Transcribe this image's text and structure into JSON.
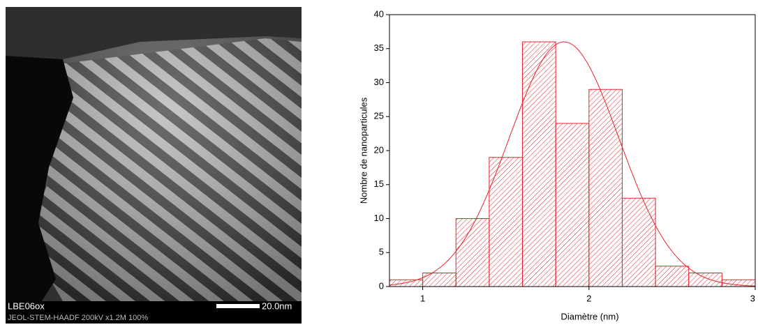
{
  "micrograph": {
    "label": "LBE06ox",
    "info": "JEOL-STEM-HAADF 200kV x1.2M 100%",
    "scale": "20.0nm"
  },
  "chart_data": {
    "type": "histogram",
    "x_label": "Diamètre (nm)",
    "y_label": "Nombre de nanoparticules",
    "bins": [
      0.8,
      1.0,
      1.2,
      1.4,
      1.6,
      1.8,
      2.0,
      2.2,
      2.4,
      2.6,
      2.8,
      3.0
    ],
    "values": [
      1,
      2,
      10,
      19,
      36,
      24,
      29,
      13,
      3,
      2,
      1
    ],
    "color": "#e3242b",
    "xlim": [
      0.8,
      3
    ],
    "xticks": [
      1,
      2,
      3
    ],
    "ylim": [
      0,
      40
    ],
    "yticks": [
      0,
      5,
      10,
      15,
      20,
      25,
      30,
      35,
      40
    ],
    "fit": {
      "peak": 36,
      "mean": 1.85,
      "sigma": 0.33
    }
  }
}
